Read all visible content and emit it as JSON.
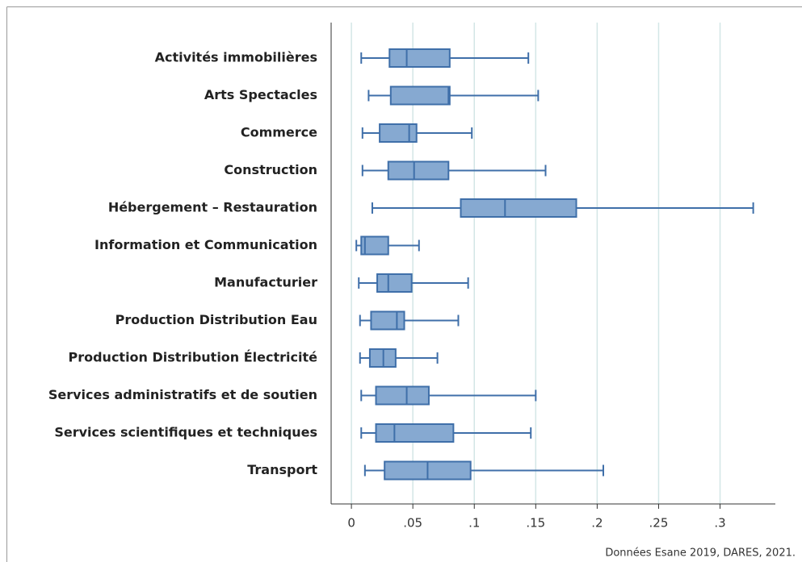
{
  "chart_data": {
    "type": "box",
    "categories": [
      "Activités immobilières",
      "Arts Spectacles",
      "Commerce",
      "Construction",
      "Hébergement – Restauration",
      "Information et Communication",
      "Manufacturier",
      "Production Distribution Eau",
      "Production Distribution Électricité",
      "Services administratifs et de soutien",
      "Services scientifiques et techniques",
      "Transport"
    ],
    "low": [
      0.008,
      0.014,
      0.009,
      0.009,
      0.017,
      0.004,
      0.006,
      0.007,
      0.007,
      0.008,
      0.008,
      0.011
    ],
    "q1": [
      0.031,
      0.032,
      0.023,
      0.03,
      0.089,
      0.008,
      0.021,
      0.016,
      0.015,
      0.02,
      0.02,
      0.027
    ],
    "median": [
      0.045,
      0.079,
      0.047,
      0.051,
      0.125,
      0.011,
      0.03,
      0.037,
      0.026,
      0.045,
      0.035,
      0.062
    ],
    "q3": [
      0.08,
      0.08,
      0.053,
      0.079,
      0.183,
      0.03,
      0.049,
      0.043,
      0.036,
      0.063,
      0.083,
      0.097
    ],
    "high": [
      0.144,
      0.152,
      0.098,
      0.158,
      0.327,
      0.055,
      0.095,
      0.087,
      0.07,
      0.15,
      0.146,
      0.205
    ],
    "color": "#86a9d1",
    "edge_color": "#3f6fa9",
    "grid": true,
    "xlim": [
      -0.0165,
      0.345
    ],
    "xticks": [
      0,
      {
        "value": 0.05,
        "label": ".05"
      },
      {
        "value": 0.1,
        "label": ".1"
      },
      {
        "value": 0.15,
        "label": ".15"
      },
      {
        "value": 0.2,
        "label": ".2"
      },
      {
        "value": 0.25,
        "label": ".25"
      },
      {
        "value": 0.3,
        "label": ".3"
      }
    ],
    "note": "Données Esane 2019, DARES, 2021."
  }
}
